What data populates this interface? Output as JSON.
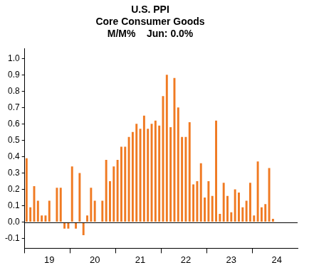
{
  "chart_data": {
    "type": "bar",
    "title": "U.S. PPI",
    "subtitle": "Core Consumer Goods",
    "annotations": [
      "M/M%    Jun: 0.0%"
    ],
    "categories": [
      null,
      null,
      null,
      null,
      null,
      null,
      "19",
      null,
      null,
      null,
      null,
      null,
      null,
      null,
      null,
      null,
      null,
      null,
      "20",
      null,
      null,
      null,
      null,
      null,
      null,
      null,
      null,
      null,
      null,
      null,
      "21",
      null,
      null,
      null,
      null,
      null,
      null,
      null,
      null,
      null,
      null,
      null,
      "22",
      null,
      null,
      null,
      null,
      null,
      null,
      null,
      null,
      null,
      null,
      null,
      "23",
      null,
      null,
      null,
      null,
      null,
      null,
      null,
      null,
      null,
      null,
      null,
      "24",
      null,
      null,
      null,
      null,
      null
    ],
    "values": [
      0.39,
      0.09,
      0.22,
      0.13,
      0.04,
      0.04,
      0.13,
      0.0,
      0.21,
      0.21,
      -0.04,
      -0.04,
      0.34,
      -0.04,
      0.3,
      -0.08,
      0.04,
      0.21,
      0.13,
      0.0,
      0.13,
      0.38,
      0.25,
      0.34,
      0.38,
      0.46,
      0.46,
      0.52,
      0.55,
      0.6,
      0.57,
      0.65,
      0.57,
      0.6,
      0.62,
      0.59,
      0.77,
      0.9,
      0.58,
      0.88,
      0.7,
      0.52,
      0.52,
      0.61,
      0.23,
      0.25,
      0.36,
      0.15,
      0.25,
      0.16,
      0.62,
      0.05,
      0.24,
      0.16,
      0.06,
      0.2,
      0.18,
      0.09,
      0.13,
      0.24,
      0.04,
      0.37,
      0.09,
      0.11,
      0.33,
      0.02,
      null,
      null,
      null,
      null,
      null,
      null
    ],
    "color": "#f07a22",
    "ylim": [
      -0.16,
      1.06
    ],
    "yticks": [
      -0.1,
      {
        "value": 0,
        "label": "0.0"
      },
      0.1,
      0.2,
      0.3,
      0.4,
      0.5,
      0.6,
      0.7,
      0.8,
      0.9,
      {
        "value": 1,
        "label": "1.0"
      }
    ],
    "grid": false
  }
}
